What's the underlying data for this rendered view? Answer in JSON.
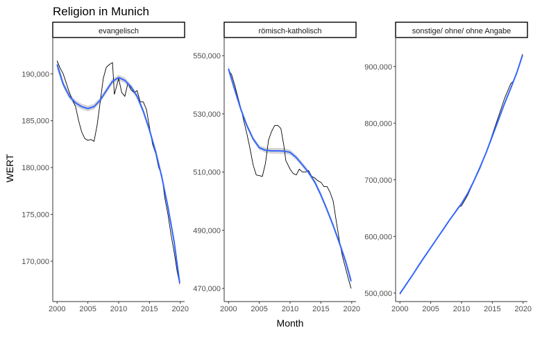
{
  "chart_data": {
    "type": "line",
    "title": "Religion in Munich",
    "xlabel": "Month",
    "ylabel": "WERT",
    "grid": false,
    "smoother_band": true,
    "colors": {
      "raw_line": "#000000",
      "smooth_line": "#3366ff",
      "band": "#b3b3b3",
      "panel_border": "#333333",
      "strip_fill": "#ffffff"
    },
    "panels": [
      {
        "label": "evangelisch",
        "xlim": [
          1999.3,
          2020.7
        ],
        "ylim": [
          165700,
          193800
        ],
        "x_ticks": [
          2000,
          2005,
          2010,
          2015,
          2020
        ],
        "x_tick_labels": [
          "2000",
          "2005",
          "2010",
          "2015",
          "2020"
        ],
        "y_ticks": [
          170000,
          175000,
          180000,
          185000,
          190000
        ],
        "y_tick_labels": [
          "170,000",
          "175,000",
          "180,000",
          "185,000",
          "190,000"
        ],
        "raw": [
          [
            2000.0,
            191.4
          ],
          [
            2000.5,
            190.6
          ],
          [
            2001.0,
            190.0
          ],
          [
            2001.5,
            189.0
          ],
          [
            2002.0,
            188.0
          ],
          [
            2002.5,
            187.2
          ],
          [
            2003.0,
            186.5
          ],
          [
            2003.5,
            185.0
          ],
          [
            2004.0,
            183.8
          ],
          [
            2004.5,
            183.1
          ],
          [
            2005.0,
            182.9
          ],
          [
            2005.5,
            183.0
          ],
          [
            2006.0,
            182.8
          ],
          [
            2006.5,
            184.5
          ],
          [
            2007.0,
            187.0
          ],
          [
            2007.5,
            189.5
          ],
          [
            2008.0,
            190.7
          ],
          [
            2008.5,
            191.0
          ],
          [
            2009.0,
            191.2
          ],
          [
            2009.3,
            187.8
          ],
          [
            2010.0,
            189.5
          ],
          [
            2010.5,
            188.0
          ],
          [
            2011.0,
            187.6
          ],
          [
            2011.5,
            189.0
          ],
          [
            2012.0,
            188.3
          ],
          [
            2012.5,
            188.0
          ],
          [
            2013.0,
            188.2
          ],
          [
            2013.5,
            187.0
          ],
          [
            2014.0,
            187.0
          ],
          [
            2014.5,
            186.2
          ],
          [
            2015.0,
            184.3
          ],
          [
            2015.5,
            182.5
          ],
          [
            2016.0,
            181.5
          ],
          [
            2016.5,
            180.0
          ],
          [
            2017.0,
            179.2
          ],
          [
            2017.5,
            176.7
          ],
          [
            2018.0,
            175.0
          ],
          [
            2018.5,
            172.8
          ],
          [
            2019.0,
            171.0
          ],
          [
            2019.5,
            168.9
          ],
          [
            2019.9,
            167.6
          ]
        ],
        "smooth": [
          [
            2000.0,
            191.0
          ],
          [
            2001.0,
            188.9
          ],
          [
            2002.0,
            187.6
          ],
          [
            2003.0,
            186.9
          ],
          [
            2004.0,
            186.5
          ],
          [
            2005.0,
            186.3
          ],
          [
            2006.0,
            186.5
          ],
          [
            2007.0,
            187.2
          ],
          [
            2008.0,
            188.2
          ],
          [
            2009.0,
            189.2
          ],
          [
            2010.0,
            189.6
          ],
          [
            2011.0,
            189.3
          ],
          [
            2012.0,
            188.6
          ],
          [
            2013.0,
            187.6
          ],
          [
            2014.0,
            186.0
          ],
          [
            2015.0,
            184.0
          ],
          [
            2016.0,
            181.7
          ],
          [
            2017.0,
            179.0
          ],
          [
            2018.0,
            175.8
          ],
          [
            2019.0,
            172.1
          ],
          [
            2019.9,
            167.7
          ]
        ],
        "band_halfwidth": [
          0.55,
          0.35,
          0.3,
          0.3,
          0.3,
          0.3,
          0.3,
          0.3,
          0.3,
          0.3,
          0.3,
          0.3,
          0.3,
          0.3,
          0.3,
          0.3,
          0.3,
          0.3,
          0.3,
          0.35,
          0.5
        ]
      },
      {
        "label": "römisch-katholisch",
        "xlim": [
          1999.3,
          2020.7
        ],
        "ylim": [
          465500,
          556000
        ],
        "x_ticks": [
          2000,
          2005,
          2010,
          2015,
          2020
        ],
        "x_tick_labels": [
          "2000",
          "2005",
          "2010",
          "2015",
          "2020"
        ],
        "y_ticks": [
          470000,
          490000,
          510000,
          530000,
          550000
        ],
        "y_tick_labels": [
          "470,000",
          "490,000",
          "510,000",
          "530,000",
          "550,000"
        ],
        "raw": [
          [
            2000.0,
            545.0
          ],
          [
            2000.5,
            543.5
          ],
          [
            2001.0,
            540.0
          ],
          [
            2001.5,
            536.0
          ],
          [
            2002.0,
            532.0
          ],
          [
            2002.5,
            527.5
          ],
          [
            2003.0,
            523.0
          ],
          [
            2003.5,
            518.0
          ],
          [
            2004.0,
            512.5
          ],
          [
            2004.5,
            509.0
          ],
          [
            2005.0,
            508.8
          ],
          [
            2005.5,
            508.5
          ],
          [
            2006.0,
            513.0
          ],
          [
            2006.5,
            521.0
          ],
          [
            2007.0,
            524.0
          ],
          [
            2007.5,
            526.0
          ],
          [
            2008.0,
            526.0
          ],
          [
            2008.5,
            525.0
          ],
          [
            2009.0,
            519.0
          ],
          [
            2009.3,
            514.0
          ],
          [
            2010.0,
            511.0
          ],
          [
            2010.5,
            509.5
          ],
          [
            2011.0,
            509.0
          ],
          [
            2011.5,
            511.0
          ],
          [
            2012.0,
            510.0
          ],
          [
            2012.5,
            510.0
          ],
          [
            2013.0,
            510.5
          ],
          [
            2013.5,
            508.5
          ],
          [
            2014.0,
            508.0
          ],
          [
            2014.5,
            507.0
          ],
          [
            2015.0,
            506.5
          ],
          [
            2015.5,
            505.0
          ],
          [
            2016.0,
            505.0
          ],
          [
            2016.5,
            503.0
          ],
          [
            2017.0,
            500.0
          ],
          [
            2017.5,
            493.0
          ],
          [
            2018.0,
            486.5
          ],
          [
            2018.5,
            481.0
          ],
          [
            2019.0,
            477.0
          ],
          [
            2019.5,
            473.0
          ],
          [
            2019.9,
            470.0
          ]
        ],
        "smooth": [
          [
            2000.0,
            545.5
          ],
          [
            2001.0,
            538.4
          ],
          [
            2002.0,
            531.6
          ],
          [
            2003.0,
            525.9
          ],
          [
            2004.0,
            521.4
          ],
          [
            2005.0,
            518.4
          ],
          [
            2006.0,
            517.5
          ],
          [
            2007.0,
            517.3
          ],
          [
            2008.0,
            517.3
          ],
          [
            2009.0,
            517.2
          ],
          [
            2010.0,
            516.8
          ],
          [
            2011.0,
            515.0
          ],
          [
            2012.0,
            512.5
          ],
          [
            2013.0,
            509.9
          ],
          [
            2014.0,
            506.6
          ],
          [
            2015.0,
            502.1
          ],
          [
            2016.0,
            497.0
          ],
          [
            2017.0,
            491.6
          ],
          [
            2018.0,
            485.7
          ],
          [
            2019.0,
            479.4
          ],
          [
            2019.9,
            472.5
          ]
        ],
        "band_halfwidth": [
          1.3,
          0.9,
          0.8,
          0.8,
          0.8,
          0.8,
          0.9,
          1.0,
          1.0,
          1.0,
          0.9,
          0.8,
          0.8,
          0.8,
          0.8,
          0.8,
          0.8,
          0.8,
          0.9,
          1.0,
          1.3
        ]
      },
      {
        "label": "sonstige/ ohne/ ohne Angabe",
        "xlim": [
          1999.3,
          2020.7
        ],
        "ylim": [
          485000,
          950000
        ],
        "x_ticks": [
          2000,
          2005,
          2010,
          2015,
          2020
        ],
        "x_tick_labels": [
          "2000",
          "2005",
          "2010",
          "2015",
          "2020"
        ],
        "y_ticks": [
          500000,
          600000,
          700000,
          800000,
          900000
        ],
        "y_tick_labels": [
          "500,000",
          "600,000",
          "700,000",
          "800,000",
          "900,000"
        ],
        "raw": [
          [
            2000.0,
            498.0
          ],
          [
            2001.0,
            514.0
          ],
          [
            2002.0,
            531.0
          ],
          [
            2003.0,
            549.0
          ],
          [
            2004.0,
            565.0
          ],
          [
            2005.0,
            580.0
          ],
          [
            2006.0,
            596.0
          ],
          [
            2007.0,
            612.0
          ],
          [
            2008.0,
            628.0
          ],
          [
            2009.0,
            644.0
          ],
          [
            2009.5,
            652.0
          ],
          [
            2010.0,
            654.0
          ],
          [
            2011.0,
            673.0
          ],
          [
            2012.0,
            697.0
          ],
          [
            2013.0,
            720.0
          ],
          [
            2014.0,
            748.0
          ],
          [
            2015.0,
            780.0
          ],
          [
            2016.0,
            812.0
          ],
          [
            2017.0,
            844.0
          ],
          [
            2018.0,
            870.0
          ],
          [
            2018.5,
            875.0
          ],
          [
            2019.0,
            890.0
          ],
          [
            2019.5,
            908.0
          ],
          [
            2019.9,
            922.0
          ]
        ],
        "smooth": [
          [
            2000.0,
            499.0
          ],
          [
            2001.0,
            515.0
          ],
          [
            2002.0,
            531.0
          ],
          [
            2003.0,
            548.0
          ],
          [
            2004.0,
            564.0
          ],
          [
            2005.0,
            580.0
          ],
          [
            2006.0,
            596.0
          ],
          [
            2007.0,
            612.0
          ],
          [
            2008.0,
            628.0
          ],
          [
            2009.0,
            643.0
          ],
          [
            2010.0,
            658.0
          ],
          [
            2011.0,
            676.0
          ],
          [
            2012.0,
            698.0
          ],
          [
            2013.0,
            722.0
          ],
          [
            2014.0,
            748.0
          ],
          [
            2015.0,
            777.0
          ],
          [
            2016.0,
            806.0
          ],
          [
            2017.0,
            835.0
          ],
          [
            2018.0,
            862.0
          ],
          [
            2019.0,
            890.0
          ],
          [
            2019.9,
            920.0
          ]
        ],
        "band_halfwidth": [
          2.0,
          1.2,
          1.0,
          1.0,
          1.0,
          1.0,
          1.0,
          1.0,
          1.0,
          1.0,
          1.0,
          1.0,
          1.0,
          1.0,
          1.0,
          1.0,
          1.0,
          1.0,
          1.2,
          1.5,
          2.0
        ]
      }
    ],
    "value_scale": 1000
  }
}
